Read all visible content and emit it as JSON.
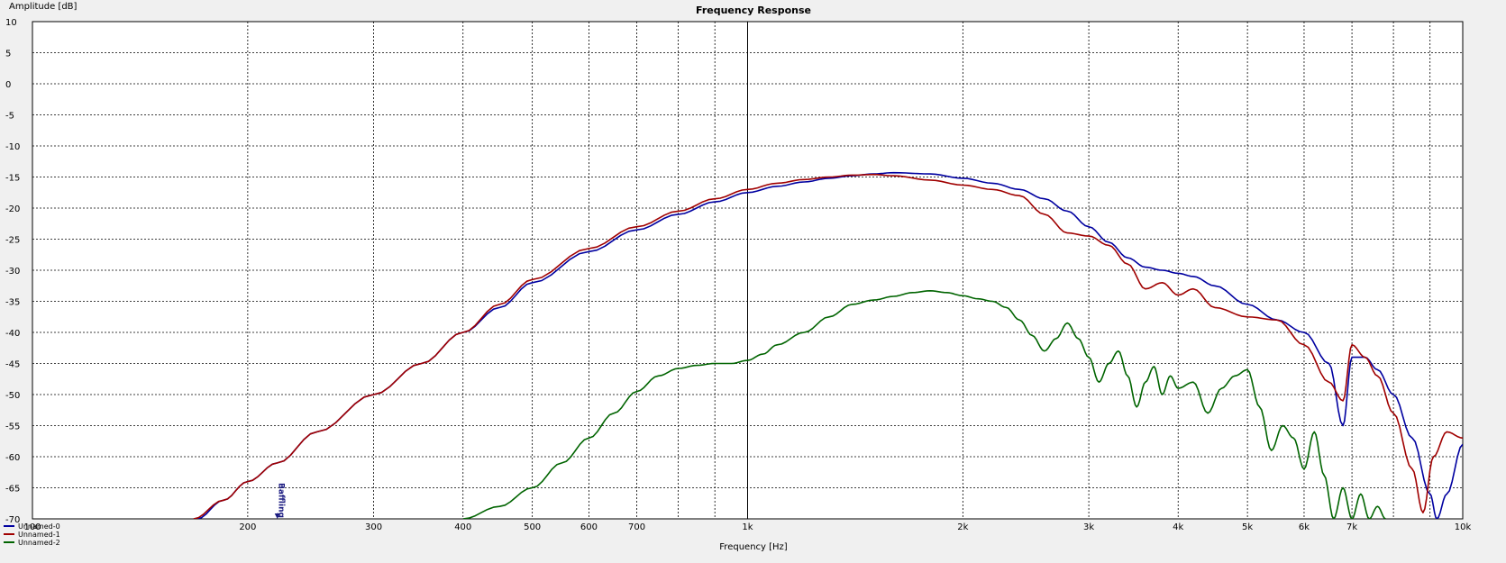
{
  "chart_data": {
    "type": "line",
    "title": "Frequency Response",
    "xlabel": "Frequency [Hz]",
    "ylabel": "Amplitude [dB]",
    "x_scale": "log",
    "xlim": [
      100,
      10000
    ],
    "ylim": [
      -70,
      10
    ],
    "grid": true,
    "legend_placement": "bottom-left",
    "annotation": "Baffling",
    "annotation_x": 220,
    "x_major_ticks": [
      100,
      1000,
      10000
    ],
    "x_tick_labels": [
      {
        "value": 100,
        "label": "100"
      },
      {
        "value": 200,
        "label": "200"
      },
      {
        "value": 300,
        "label": "300"
      },
      {
        "value": 400,
        "label": "400"
      },
      {
        "value": 500,
        "label": "500"
      },
      {
        "value": 600,
        "label": "600"
      },
      {
        "value": 700,
        "label": "700"
      },
      {
        "value": 1000,
        "label": "1k"
      },
      {
        "value": 2000,
        "label": "2k"
      },
      {
        "value": 3000,
        "label": "3k"
      },
      {
        "value": 4000,
        "label": "4k"
      },
      {
        "value": 5000,
        "label": "5k"
      },
      {
        "value": 6000,
        "label": "6k"
      },
      {
        "value": 7000,
        "label": "7k"
      },
      {
        "value": 10000,
        "label": "10k"
      }
    ],
    "x_minor_ticks": [
      200,
      300,
      400,
      500,
      600,
      700,
      800,
      900,
      2000,
      3000,
      4000,
      5000,
      6000,
      7000,
      8000,
      9000
    ],
    "y_ticks": [
      10,
      5,
      0,
      -5,
      -10,
      -15,
      -20,
      -25,
      -30,
      -35,
      -40,
      -45,
      -50,
      -55,
      -60,
      -65,
      -70
    ],
    "series": [
      {
        "name": "Unnamed-0",
        "color": "#0000a0",
        "points": [
          [
            170,
            -70
          ],
          [
            185,
            -67
          ],
          [
            200,
            -64
          ],
          [
            220,
            -61
          ],
          [
            250,
            -56
          ],
          [
            300,
            -50
          ],
          [
            350,
            -45
          ],
          [
            400,
            -40
          ],
          [
            450,
            -36
          ],
          [
            500,
            -32
          ],
          [
            600,
            -27
          ],
          [
            700,
            -23.5
          ],
          [
            800,
            -21
          ],
          [
            900,
            -19
          ],
          [
            1000,
            -17.5
          ],
          [
            1100,
            -16.5
          ],
          [
            1200,
            -15.8
          ],
          [
            1300,
            -15.2
          ],
          [
            1400,
            -14.8
          ],
          [
            1500,
            -14.5
          ],
          [
            1600,
            -14.3
          ],
          [
            1800,
            -14.5
          ],
          [
            2000,
            -15.2
          ],
          [
            2200,
            -16
          ],
          [
            2400,
            -17
          ],
          [
            2600,
            -18.5
          ],
          [
            2800,
            -20.5
          ],
          [
            3000,
            -23
          ],
          [
            3200,
            -25.5
          ],
          [
            3400,
            -28
          ],
          [
            3600,
            -29.5
          ],
          [
            3800,
            -30
          ],
          [
            4000,
            -30.5
          ],
          [
            4200,
            -31
          ],
          [
            4500,
            -32.5
          ],
          [
            5000,
            -35.5
          ],
          [
            5500,
            -38
          ],
          [
            6000,
            -40
          ],
          [
            6500,
            -45
          ],
          [
            6800,
            -55
          ],
          [
            7000,
            -44
          ],
          [
            7300,
            -44
          ],
          [
            7600,
            -46
          ],
          [
            8000,
            -50
          ],
          [
            8500,
            -57
          ],
          [
            9000,
            -66
          ],
          [
            9200,
            -70
          ],
          [
            9500,
            -66
          ],
          [
            10000,
            -58
          ]
        ]
      },
      {
        "name": "Unnamed-1",
        "color": "#a00000",
        "points": [
          [
            168,
            -70
          ],
          [
            185,
            -67
          ],
          [
            200,
            -64
          ],
          [
            220,
            -61
          ],
          [
            250,
            -56
          ],
          [
            300,
            -50
          ],
          [
            350,
            -45
          ],
          [
            400,
            -40
          ],
          [
            450,
            -35.5
          ],
          [
            500,
            -31.5
          ],
          [
            600,
            -26.5
          ],
          [
            700,
            -23
          ],
          [
            800,
            -20.5
          ],
          [
            900,
            -18.5
          ],
          [
            1000,
            -17
          ],
          [
            1100,
            -16
          ],
          [
            1200,
            -15.4
          ],
          [
            1300,
            -15
          ],
          [
            1400,
            -14.7
          ],
          [
            1500,
            -14.6
          ],
          [
            1600,
            -14.8
          ],
          [
            1800,
            -15.5
          ],
          [
            2000,
            -16.3
          ],
          [
            2200,
            -17
          ],
          [
            2400,
            -18
          ],
          [
            2600,
            -21
          ],
          [
            2800,
            -24
          ],
          [
            3000,
            -24.5
          ],
          [
            3200,
            -26
          ],
          [
            3400,
            -29
          ],
          [
            3600,
            -33
          ],
          [
            3800,
            -32
          ],
          [
            4000,
            -34
          ],
          [
            4200,
            -33
          ],
          [
            4500,
            -36
          ],
          [
            5000,
            -37.5
          ],
          [
            5500,
            -38
          ],
          [
            6000,
            -42
          ],
          [
            6500,
            -48
          ],
          [
            6800,
            -51
          ],
          [
            7000,
            -42
          ],
          [
            7300,
            -44
          ],
          [
            7600,
            -47
          ],
          [
            8000,
            -53
          ],
          [
            8500,
            -62
          ],
          [
            8800,
            -69
          ],
          [
            9100,
            -60
          ],
          [
            9500,
            -56
          ],
          [
            10000,
            -57
          ]
        ]
      },
      {
        "name": "Unnamed-2",
        "color": "#006400",
        "points": [
          [
            400,
            -70
          ],
          [
            450,
            -68
          ],
          [
            500,
            -65
          ],
          [
            550,
            -61
          ],
          [
            600,
            -57
          ],
          [
            650,
            -53
          ],
          [
            700,
            -49.5
          ],
          [
            750,
            -47
          ],
          [
            800,
            -45.8
          ],
          [
            850,
            -45.3
          ],
          [
            900,
            -45
          ],
          [
            950,
            -45
          ],
          [
            1000,
            -44.5
          ],
          [
            1050,
            -43.5
          ],
          [
            1100,
            -42
          ],
          [
            1200,
            -40
          ],
          [
            1300,
            -37.5
          ],
          [
            1400,
            -35.5
          ],
          [
            1500,
            -34.8
          ],
          [
            1600,
            -34.2
          ],
          [
            1700,
            -33.6
          ],
          [
            1800,
            -33.3
          ],
          [
            1900,
            -33.6
          ],
          [
            2000,
            -34.1
          ],
          [
            2100,
            -34.6
          ],
          [
            2200,
            -35
          ],
          [
            2300,
            -36
          ],
          [
            2400,
            -38
          ],
          [
            2500,
            -40.5
          ],
          [
            2600,
            -43
          ],
          [
            2700,
            -41
          ],
          [
            2800,
            -38.5
          ],
          [
            2900,
            -41
          ],
          [
            3000,
            -44
          ],
          [
            3100,
            -48
          ],
          [
            3200,
            -45
          ],
          [
            3300,
            -43
          ],
          [
            3400,
            -47
          ],
          [
            3500,
            -52
          ],
          [
            3600,
            -48
          ],
          [
            3700,
            -45.5
          ],
          [
            3800,
            -50
          ],
          [
            3900,
            -47
          ],
          [
            4000,
            -49
          ],
          [
            4200,
            -48
          ],
          [
            4400,
            -53
          ],
          [
            4600,
            -49
          ],
          [
            4800,
            -47
          ],
          [
            5000,
            -46
          ],
          [
            5200,
            -52
          ],
          [
            5400,
            -59
          ],
          [
            5600,
            -55
          ],
          [
            5800,
            -57
          ],
          [
            6000,
            -62
          ],
          [
            6200,
            -56
          ],
          [
            6400,
            -63
          ],
          [
            6600,
            -70
          ],
          [
            6800,
            -65
          ],
          [
            7000,
            -70
          ],
          [
            7200,
            -66
          ],
          [
            7400,
            -70
          ],
          [
            7600,
            -68
          ],
          [
            7800,
            -70
          ]
        ]
      }
    ]
  }
}
